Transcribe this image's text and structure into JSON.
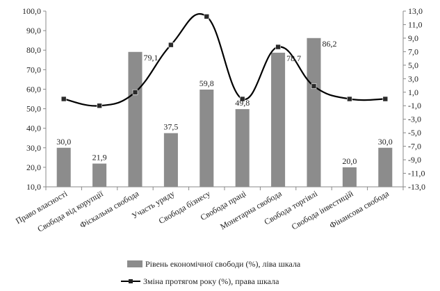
{
  "chart_data": {
    "type": "bar",
    "categories": [
      "Право власності",
      "Свобода від корупції",
      "Фіскальна свобода",
      "Участь уряду",
      "Свобода бізнесу",
      "Свобода праці",
      "Монетарна свобода",
      "Свобода торгівлі",
      "Свобода інвестицій",
      "Фінансова свобода"
    ],
    "series": [
      {
        "name": "Рівень економічної свободи (%), ліва шкала",
        "type": "bar",
        "axis": "left",
        "color": "#8c8c8c",
        "values": [
          30.0,
          21.9,
          79.1,
          37.5,
          59.8,
          49.8,
          78.7,
          86.2,
          20.0,
          30.0
        ],
        "labels": [
          "30,0",
          "21,9",
          "79,1",
          "37,5",
          "59,8",
          "49,8",
          "78,7",
          "86,2",
          "20,0",
          "30,0"
        ]
      },
      {
        "name": "Зміна протягом року (%), права шкала",
        "type": "line",
        "axis": "right",
        "color": "#000000",
        "values": [
          0.0,
          -1.0,
          1.0,
          8.0,
          12.2,
          0.0,
          7.7,
          1.9,
          0.0,
          0.0
        ]
      }
    ],
    "left_axis": {
      "ylim": [
        10,
        100
      ],
      "ticks": [
        "10,0",
        "20,0",
        "30,0",
        "40,0",
        "50,0",
        "60,0",
        "70,0",
        "80,0",
        "90,0",
        "100,0"
      ]
    },
    "right_axis": {
      "ylim": [
        -13,
        13
      ],
      "ticks": [
        "-13,0",
        "-11,0",
        "-9,0",
        "-7,0",
        "-5,0",
        "-3,0",
        "-1,0",
        "1,0",
        "3,0",
        "5,0",
        "7,0",
        "9,0",
        "11,0",
        "13,0"
      ]
    },
    "grid": false,
    "legend": "bottom"
  }
}
